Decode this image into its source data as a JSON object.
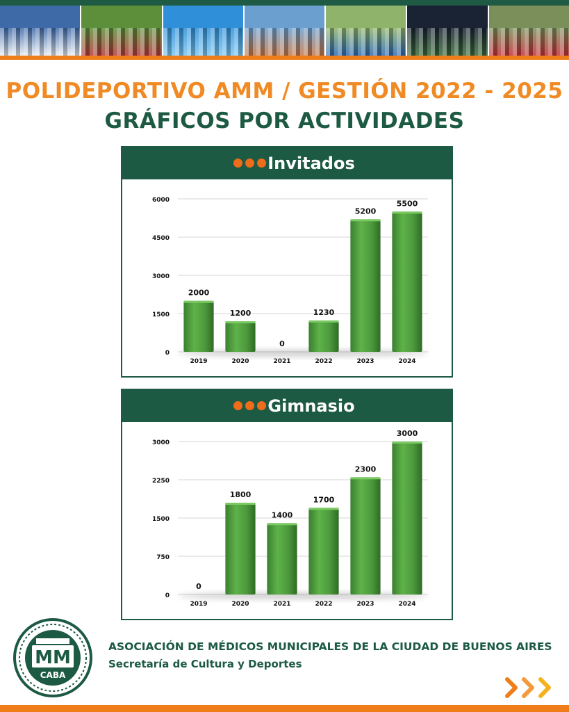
{
  "header": {
    "title_line1": "POLIDEPORTIVO AMM / GESTIÓN 2022 - 2025",
    "title_line2": "GRÁFICOS POR ACTIVIDADES"
  },
  "photo_strip": {
    "photos": [
      {
        "name": "team-celebration-photo",
        "sky": "#3f6aa8",
        "ground": "#e9eef5"
      },
      {
        "name": "kids-outdoor-activity-photo",
        "sky": "#5d8f3a",
        "ground": "#b53a3a"
      },
      {
        "name": "kids-swimming-pool-photo",
        "sky": "#2f8fd8",
        "ground": "#7cc7f2"
      },
      {
        "name": "kids-field-group-photo",
        "sky": "#6b9fcf",
        "ground": "#c77a4a"
      },
      {
        "name": "club-entrance-photo",
        "sky": "#8fb36a",
        "ground": "#2f6bb5"
      },
      {
        "name": "night-team-banner-photo",
        "sky": "#1a2333",
        "ground": "#3b6a3a"
      },
      {
        "name": "soccer-match-photo",
        "sky": "#7a8f5a",
        "ground": "#c4323a"
      }
    ]
  },
  "footer": {
    "org_name": "ASOCIACIÓN DE MÉDICOS MUNICIPALES DE LA CIUDAD DE BUENOS AIRES",
    "org_dept": "Secretaría de Cultura y Deportes",
    "logo_text": "CABA",
    "logo_monogram": "MM"
  },
  "colors": {
    "accent_orange": "#f08a24",
    "brand_green": "#1d5a43",
    "bar_green": "#4c9a3c"
  },
  "chart_data": [
    {
      "type": "bar",
      "title": "Invitados",
      "categories": [
        "2019",
        "2020",
        "2021",
        "2022",
        "2023",
        "2024"
      ],
      "values": [
        2000,
        1200,
        0,
        1230,
        5200,
        5500
      ],
      "data_labels": [
        "2000",
        "1200",
        "0",
        "1230",
        "5200",
        "5500"
      ],
      "yticks": [
        0,
        1500,
        3000,
        4500,
        6000
      ],
      "ylim": [
        0,
        6000
      ],
      "grid": true,
      "legend": "none"
    },
    {
      "type": "bar",
      "title": "Gimnasio",
      "categories": [
        "2019",
        "2020",
        "2021",
        "2022",
        "2023",
        "2024"
      ],
      "values": [
        0,
        1800,
        1400,
        1700,
        2300,
        3000
      ],
      "data_labels": [
        "0",
        "1800",
        "1400",
        "1700",
        "2300",
        "3000"
      ],
      "yticks": [
        0,
        750,
        1500,
        2250,
        3000
      ],
      "ylim": [
        0,
        3000
      ],
      "grid": true,
      "legend": "none"
    }
  ]
}
